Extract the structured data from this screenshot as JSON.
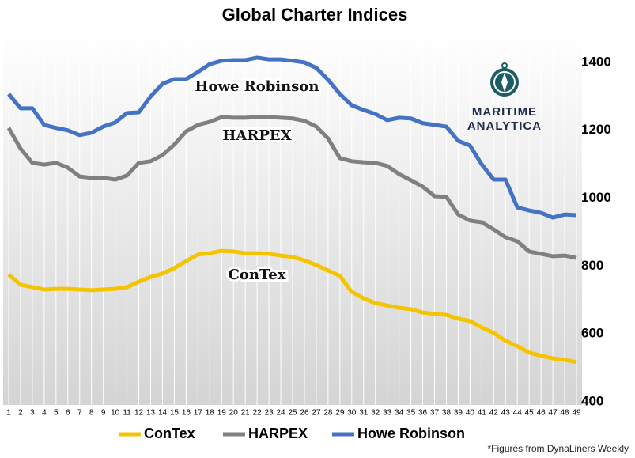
{
  "chart_data": {
    "type": "line",
    "title": "Global Charter Indices",
    "categories": [
      1,
      2,
      3,
      4,
      5,
      6,
      7,
      8,
      9,
      10,
      11,
      12,
      13,
      14,
      15,
      16,
      17,
      18,
      19,
      20,
      21,
      22,
      23,
      24,
      25,
      26,
      27,
      28,
      29,
      30,
      31,
      32,
      33,
      34,
      35,
      36,
      37,
      38,
      39,
      40,
      41,
      42,
      43,
      44,
      45,
      46,
      47,
      48,
      49
    ],
    "series": [
      {
        "name": "ConTex",
        "color": "#f5c400",
        "values": [
          775,
          745,
          738,
          731,
          733,
          733,
          731,
          729,
          731,
          733,
          738,
          754,
          768,
          778,
          794,
          815,
          834,
          838,
          845,
          843,
          838,
          838,
          836,
          831,
          827,
          817,
          803,
          787,
          771,
          724,
          705,
          691,
          684,
          677,
          673,
          663,
          659,
          656,
          645,
          638,
          619,
          603,
          580,
          564,
          545,
          536,
          528,
          524,
          517
        ]
      },
      {
        "name": "HARPEX",
        "color": "#808080",
        "values": [
          1207,
          1146,
          1104,
          1099,
          1104,
          1090,
          1064,
          1060,
          1060,
          1055,
          1067,
          1104,
          1109,
          1127,
          1158,
          1197,
          1216,
          1225,
          1239,
          1237,
          1237,
          1239,
          1239,
          1237,
          1235,
          1228,
          1211,
          1176,
          1118,
          1109,
          1106,
          1104,
          1095,
          1071,
          1053,
          1034,
          1006,
          1004,
          952,
          934,
          929,
          908,
          885,
          873,
          843,
          836,
          829,
          831,
          824
        ]
      },
      {
        "name": "Howe Robinson",
        "color": "#4472c4",
        "values": [
          1307,
          1265,
          1265,
          1216,
          1207,
          1200,
          1186,
          1193,
          1211,
          1223,
          1251,
          1253,
          1300,
          1337,
          1351,
          1351,
          1372,
          1395,
          1405,
          1407,
          1407,
          1414,
          1409,
          1409,
          1405,
          1400,
          1384,
          1349,
          1307,
          1274,
          1260,
          1248,
          1230,
          1237,
          1235,
          1221,
          1216,
          1211,
          1169,
          1155,
          1099,
          1055,
          1055,
          973,
          964,
          957,
          943,
          952,
          950
        ]
      }
    ],
    "ylim": [
      400,
      1450
    ],
    "yticks": [
      400,
      600,
      800,
      1000,
      1200,
      1400
    ],
    "axis_side": "right",
    "grid": true,
    "annotations": [
      "Howe Robinson",
      "HARPEX",
      "ConTex"
    ],
    "logo": [
      "MARITIME",
      "ANALYTICA"
    ],
    "footnote": "*Figures  from DynaLiners Weekly"
  }
}
